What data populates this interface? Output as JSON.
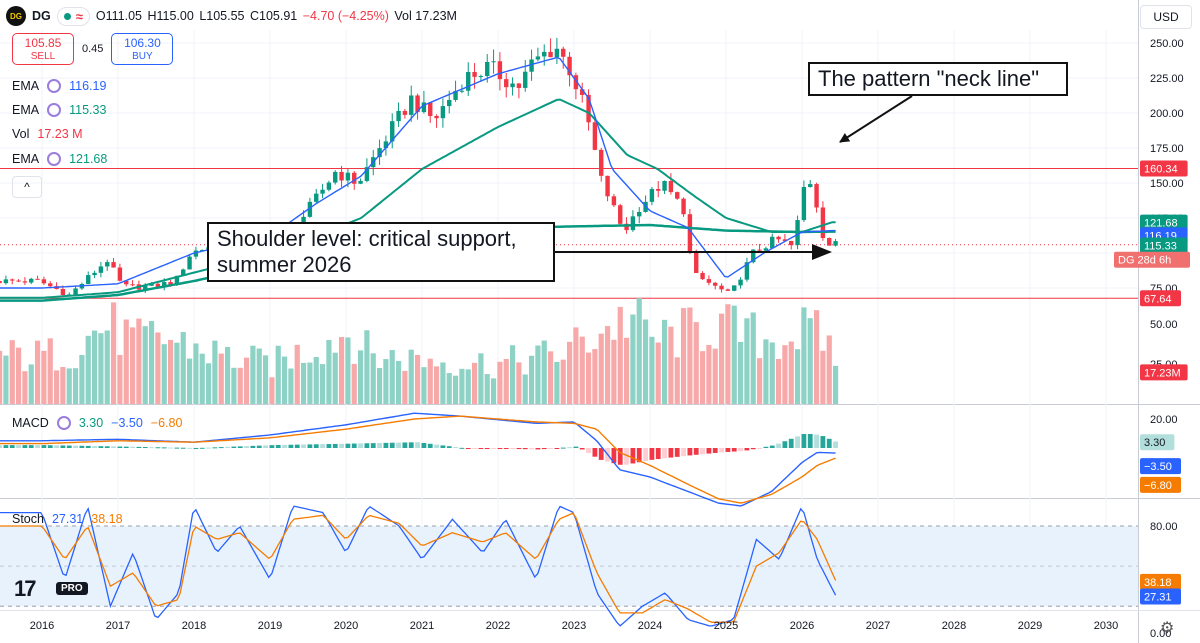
{
  "header": {
    "symbol": "DG",
    "logo_text": "DG",
    "dot_icon": "status-dot-icon",
    "approx_icon": "≈",
    "ohlc": {
      "o": "O111.05",
      "h": "H115.00",
      "l": "L105.55",
      "c": "C105.91",
      "change": "−4.70 (−4.25%)",
      "vol": "Vol 17.23M"
    },
    "currency": "USD"
  },
  "trade": {
    "sell_price": "105.85",
    "sell_label": "SELL",
    "spread": "0.45",
    "buy_price": "106.30",
    "buy_label": "BUY"
  },
  "legend": [
    {
      "name": "EMA",
      "value": "116.19",
      "color": "#2962ff"
    },
    {
      "name": "EMA",
      "value": "115.33",
      "color": "#089981"
    },
    {
      "name": "Vol",
      "value": "17.23 M",
      "color": "#f23645"
    },
    {
      "name": "EMA",
      "value": "121.68",
      "color": "#089981"
    }
  ],
  "collapse_icon": "^",
  "callouts": {
    "neck": "The pattern \"neck line\"",
    "shoulder_line1": "Shoulder level: critical support,",
    "shoulder_line2": "summer 2026"
  },
  "macd_legend": {
    "name": "MACD",
    "v1": "3.30",
    "v2": "−3.50",
    "v3": "−6.80"
  },
  "stoch_legend": {
    "name": "Stoch",
    "v1": "27.31",
    "v2": "38.18"
  },
  "tv": {
    "logo": "17",
    "badge": "PRO"
  },
  "colors": {
    "up": "#089981",
    "down": "#f23645",
    "ema_fast": "#2962ff",
    "ema_slow": "#089981",
    "macd_signal": "#f57c00",
    "hline": "#f23645"
  },
  "chart_data": [
    {
      "type": "candlestick",
      "title": "DG",
      "x_axis_ticks": [
        "2016",
        "2017",
        "2018",
        "2019",
        "2020",
        "2021",
        "2022",
        "2023",
        "2024",
        "2025",
        "2026",
        "2027",
        "2028",
        "2029",
        "2030"
      ],
      "y_axis_ticks": [
        "75.00",
        "100.00",
        "125.00",
        "150.00",
        "175.00",
        "200.00",
        "225.00",
        "250.00"
      ],
      "ylim": [
        62,
        262
      ],
      "horizontal_lines": [
        160.34,
        67.64
      ],
      "price_labels": [
        {
          "text": "160.34",
          "value": 160.34,
          "color": "#f23645"
        },
        {
          "text": "150.00",
          "value": 150,
          "color": "grey"
        },
        {
          "text": "121.68",
          "value": 121.68,
          "color": "#089981"
        },
        {
          "text": "116.19",
          "value": 116.19,
          "color": "#2962ff"
        },
        {
          "text": "115.33",
          "value": 115.33,
          "color": "#089981"
        },
        {
          "text": "DG  28d 6h",
          "value": 105.91,
          "color": "#f23645"
        },
        {
          "text": "67.64",
          "value": 67.64,
          "color": "#f23645"
        }
      ],
      "price_keypoints": [
        [
          "2016.0",
          80
        ],
        [
          "2016.4",
          70
        ],
        [
          "2016.9",
          95
        ],
        [
          "2017.1",
          76
        ],
        [
          "2017.5",
          76
        ],
        [
          "2017.8",
          80
        ],
        [
          "2018.0",
          100
        ],
        [
          "2018.5",
          110
        ],
        [
          "2018.9",
          108
        ],
        [
          "2019.4",
          120
        ],
        [
          "2019.9",
          158
        ],
        [
          "2020.2",
          150
        ],
        [
          "2020.6",
          185
        ],
        [
          "2020.9",
          210
        ],
        [
          "2021.2",
          195
        ],
        [
          "2021.6",
          225
        ],
        [
          "2021.9",
          232
        ],
        [
          "2022.0",
          230
        ],
        [
          "2022.3",
          218
        ],
        [
          "2022.5",
          236
        ],
        [
          "2022.8",
          248
        ],
        [
          "2023.0",
          230
        ],
        [
          "2023.2",
          200
        ],
        [
          "2023.4",
          152
        ],
        [
          "2023.7",
          115
        ],
        [
          "2023.9",
          133
        ],
        [
          "2024.2",
          150
        ],
        [
          "2024.5",
          130
        ],
        [
          "2024.6",
          85
        ],
        [
          "2024.9",
          76
        ],
        [
          "2025.1",
          70
        ],
        [
          "2025.4",
          100
        ],
        [
          "2025.7",
          110
        ],
        [
          "2025.9",
          105
        ],
        [
          "2026.0",
          125
        ],
        [
          "2026.1",
          157
        ],
        [
          "2026.2",
          145
        ],
        [
          "2026.3",
          115
        ],
        [
          "2026.4",
          106
        ]
      ],
      "ema_fast_keypoints": [
        [
          "2016.0",
          75
        ],
        [
          "2017.0",
          78
        ],
        [
          "2018.0",
          100
        ],
        [
          "2019.0",
          112
        ],
        [
          "2019.6",
          135
        ],
        [
          "2020.2",
          155
        ],
        [
          "2021.0",
          205
        ],
        [
          "2022.0",
          228
        ],
        [
          "2022.8",
          240
        ],
        [
          "2023.2",
          210
        ],
        [
          "2023.5",
          160
        ],
        [
          "2024.0",
          130
        ],
        [
          "2024.5",
          118
        ],
        [
          "2025.0",
          82
        ],
        [
          "2025.5",
          100
        ],
        [
          "2026.0",
          115
        ],
        [
          "2026.4",
          116
        ]
      ],
      "ema_slow_keypoints": [
        [
          "2016.0",
          68
        ],
        [
          "2017.0",
          72
        ],
        [
          "2018.0",
          86
        ],
        [
          "2019.0",
          100
        ],
        [
          "2019.6",
          112
        ],
        [
          "2020.2",
          125
        ],
        [
          "2021.0",
          160
        ],
        [
          "2022.0",
          190
        ],
        [
          "2022.8",
          210
        ],
        [
          "2023.2",
          200
        ],
        [
          "2023.7",
          170
        ],
        [
          "2024.1",
          160
        ],
        [
          "2024.6",
          140
        ],
        [
          "2025.0",
          125
        ],
        [
          "2025.6",
          115
        ],
        [
          "2026.0",
          115
        ],
        [
          "2026.4",
          122
        ]
      ],
      "ema_long_keypoints": [
        [
          "2016.0",
          66
        ],
        [
          "2017.0",
          70
        ],
        [
          "2018.0",
          80
        ],
        [
          "2019.0",
          92
        ],
        [
          "2020.0",
          108
        ],
        [
          "2021.0",
          118
        ],
        [
          "2022.0",
          118
        ],
        [
          "2023.0",
          119
        ],
        [
          "2024.0",
          120
        ],
        [
          "2025.0",
          116
        ],
        [
          "2026.0",
          115
        ],
        [
          "2026.4",
          115.3
        ]
      ]
    },
    {
      "type": "bar",
      "title": "Vol",
      "y_axis_ticks": [
        "25.00",
        "50.00"
      ],
      "ylim": [
        0,
        70
      ],
      "last_value_label": "17.23M",
      "value_keypoints": [
        [
          "2016.0",
          30
        ],
        [
          "2016.4",
          35
        ],
        [
          "2016.8",
          50
        ],
        [
          "2017.2",
          38
        ],
        [
          "2017.5",
          42
        ],
        [
          "2018.0",
          35
        ],
        [
          "2018.5",
          28
        ],
        [
          "2019.0",
          25
        ],
        [
          "2019.5",
          35
        ],
        [
          "2020.0",
          45
        ],
        [
          "2020.3",
          30
        ],
        [
          "2021.0",
          28
        ],
        [
          "2022.0",
          25
        ],
        [
          "2022.8",
          32
        ],
        [
          "2023.3",
          45
        ],
        [
          "2023.7",
          55
        ],
        [
          "2024.0",
          40
        ],
        [
          "2024.5",
          45
        ],
        [
          "2024.8",
          50
        ],
        [
          "2025.1",
          45
        ],
        [
          "2025.5",
          40
        ],
        [
          "2026.0",
          45
        ],
        [
          "2026.3",
          40
        ],
        [
          "2026.45",
          17
        ]
      ]
    },
    {
      "type": "line",
      "title": "MACD",
      "y_axis_ticks": [
        "20.00"
      ],
      "ylim": [
        -45,
        30
      ],
      "labels": [
        {
          "text": "3.30",
          "value": 3.3
        },
        {
          "text": "−3.50",
          "value": -3.5
        },
        {
          "text": "−6.80",
          "value": -6.8
        }
      ],
      "series": [
        {
          "name": "MACD",
          "color": "#2962ff",
          "points": [
            [
              "2016.0",
              5
            ],
            [
              "2017.0",
              6
            ],
            [
              "2018.0",
              4
            ],
            [
              "2019.0",
              9
            ],
            [
              "2020.0",
              16
            ],
            [
              "2020.9",
              24
            ],
            [
              "2021.5",
              22
            ],
            [
              "2022.5",
              17
            ],
            [
              "2023.0",
              18
            ],
            [
              "2023.3",
              5
            ],
            [
              "2023.6",
              -15
            ],
            [
              "2024.0",
              -20
            ],
            [
              "2024.5",
              -30
            ],
            [
              "2024.9",
              -38
            ],
            [
              "2025.2",
              -40
            ],
            [
              "2025.6",
              -30
            ],
            [
              "2026.0",
              -10
            ],
            [
              "2026.2",
              -3
            ],
            [
              "2026.45",
              -3.5
            ]
          ]
        },
        {
          "name": "Signal",
          "color": "#f57c00",
          "points": [
            [
              "2016.0",
              3
            ],
            [
              "2017.0",
              5
            ],
            [
              "2018.0",
              4
            ],
            [
              "2019.0",
              7
            ],
            [
              "2020.0",
              13
            ],
            [
              "2020.9",
              20
            ],
            [
              "2021.5",
              22
            ],
            [
              "2022.5",
              18
            ],
            [
              "2023.0",
              17
            ],
            [
              "2023.3",
              13
            ],
            [
              "2023.6",
              -3
            ],
            [
              "2024.0",
              -12
            ],
            [
              "2024.5",
              -25
            ],
            [
              "2024.9",
              -35
            ],
            [
              "2025.2",
              -38
            ],
            [
              "2025.6",
              -32
            ],
            [
              "2026.0",
              -20
            ],
            [
              "2026.2",
              -12
            ],
            [
              "2026.45",
              -6.8
            ]
          ]
        }
      ]
    },
    {
      "type": "line",
      "title": "Stoch",
      "y_axis_ticks": [
        "0.00",
        "80.00"
      ],
      "ylim": [
        -10,
        110
      ],
      "band": [
        20,
        80
      ],
      "labels": [
        {
          "text": "38.18",
          "value": 38.18
        },
        {
          "text": "27.31",
          "value": 27.31
        }
      ],
      "series": [
        {
          "name": "%K",
          "color": "#2962ff",
          "points": [
            [
              "2016.0",
              90
            ],
            [
              "2016.3",
              40
            ],
            [
              "2016.6",
              95
            ],
            [
              "2016.9",
              20
            ],
            [
              "2017.2",
              60
            ],
            [
              "2017.5",
              10
            ],
            [
              "2017.8",
              30
            ],
            [
              "2018.0",
              95
            ],
            [
              "2018.3",
              60
            ],
            [
              "2018.6",
              80
            ],
            [
              "2019.0",
              40
            ],
            [
              "2019.3",
              95
            ],
            [
              "2019.7",
              90
            ],
            [
              "2020.0",
              60
            ],
            [
              "2020.3",
              95
            ],
            [
              "2020.7",
              80
            ],
            [
              "2021.0",
              55
            ],
            [
              "2021.4",
              85
            ],
            [
              "2021.8",
              60
            ],
            [
              "2022.1",
              85
            ],
            [
              "2022.5",
              40
            ],
            [
              "2022.8",
              95
            ],
            [
              "2023.0",
              90
            ],
            [
              "2023.3",
              30
            ],
            [
              "2023.6",
              5
            ],
            [
              "2023.9",
              20
            ],
            [
              "2024.2",
              30
            ],
            [
              "2024.5",
              10
            ],
            [
              "2024.8",
              5
            ],
            [
              "2025.1",
              10
            ],
            [
              "2025.4",
              70
            ],
            [
              "2025.7",
              55
            ],
            [
              "2026.0",
              95
            ],
            [
              "2026.2",
              55
            ],
            [
              "2026.45",
              27.31
            ]
          ]
        },
        {
          "name": "%D",
          "color": "#f57c00",
          "points": [
            [
              "2016.0",
              80
            ],
            [
              "2016.3",
              55
            ],
            [
              "2016.6",
              80
            ],
            [
              "2016.9",
              35
            ],
            [
              "2017.2",
              45
            ],
            [
              "2017.5",
              20
            ],
            [
              "2017.8",
              25
            ],
            [
              "2018.0",
              80
            ],
            [
              "2018.3",
              70
            ],
            [
              "2018.6",
              75
            ],
            [
              "2019.0",
              55
            ],
            [
              "2019.3",
              85
            ],
            [
              "2019.7",
              88
            ],
            [
              "2020.0",
              70
            ],
            [
              "2020.3",
              88
            ],
            [
              "2020.7",
              82
            ],
            [
              "2021.0",
              65
            ],
            [
              "2021.4",
              75
            ],
            [
              "2021.8",
              68
            ],
            [
              "2022.1",
              75
            ],
            [
              "2022.5",
              55
            ],
            [
              "2022.8",
              85
            ],
            [
              "2023.0",
              90
            ],
            [
              "2023.3",
              45
            ],
            [
              "2023.6",
              15
            ],
            [
              "2023.9",
              15
            ],
            [
              "2024.2",
              25
            ],
            [
              "2024.5",
              18
            ],
            [
              "2024.8",
              8
            ],
            [
              "2025.1",
              8
            ],
            [
              "2025.4",
              50
            ],
            [
              "2025.7",
              60
            ],
            [
              "2026.0",
              85
            ],
            [
              "2026.2",
              70
            ],
            [
              "2026.45",
              38.18
            ]
          ]
        }
      ]
    }
  ]
}
